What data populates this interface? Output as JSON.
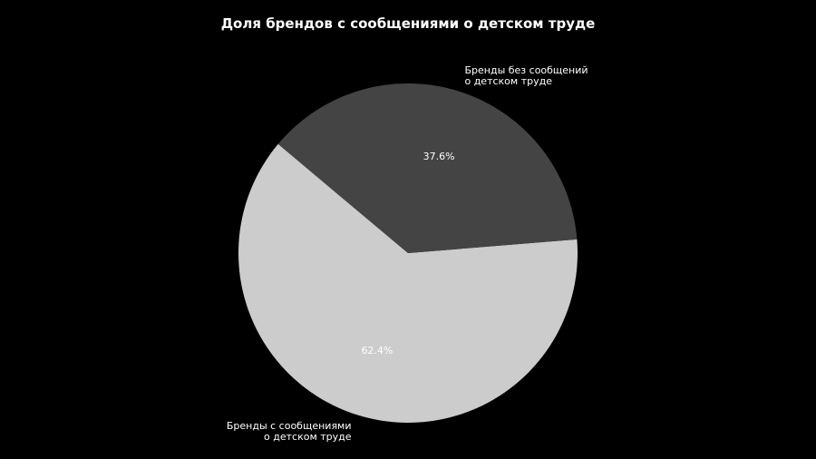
{
  "chart_data": {
    "type": "pie",
    "title": "Доля брендов с сообщениями о детском труде",
    "categories": [
      "Бренды с сообщениями\nо детском труде",
      "Бренды без сообщений\nо детском труде"
    ],
    "values": [
      62.4,
      37.6
    ],
    "value_labels": [
      "62.4%",
      "37.6%"
    ],
    "colors": [
      "#cccccc",
      "#444444"
    ],
    "start_angle_deg": 140,
    "direction": "counterclockwise",
    "legend": "none"
  },
  "background_color": "#000000",
  "text_color": "#ffffff"
}
